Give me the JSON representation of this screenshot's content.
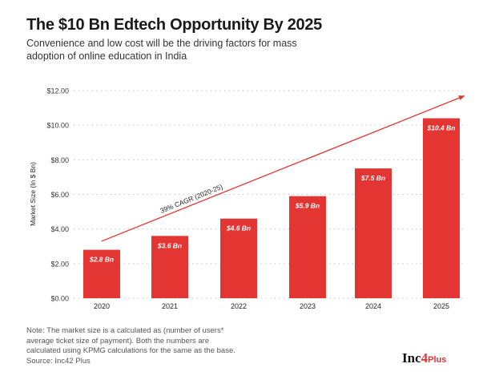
{
  "header": {
    "title": "The $10 Bn Edtech Opportunity By 2025",
    "subtitle": "Convenience and low cost will be the driving factors for mass adoption of online education in India"
  },
  "chart_data": {
    "type": "bar",
    "title": "The $10 Bn Edtech Opportunity By 2025",
    "xlabel": "",
    "ylabel": "Market Size (In $ Bn)",
    "categories": [
      "2020",
      "2021",
      "2022",
      "2023",
      "2024",
      "2025"
    ],
    "values": [
      2.8,
      3.6,
      4.6,
      5.9,
      7.5,
      10.4
    ],
    "data_labels": [
      "$2.8 Bn",
      "$3.6 Bn",
      "$4.6 Bn",
      "$5.9 Bn",
      "$7.5 Bn",
      "$10.4 Bn"
    ],
    "ylim": [
      0,
      12
    ],
    "yticks": [
      0,
      2,
      4,
      6,
      8,
      10,
      12
    ],
    "ytick_labels": [
      "$0.00",
      "$2.00",
      "$4.00",
      "$6.00",
      "$8.00",
      "$10.00",
      "$12.00"
    ],
    "grid": "horizontal-dotted",
    "annotation": {
      "text": "39% CAGR (2020-25)",
      "arrow_from": {
        "category": "2020",
        "value": 3.3
      },
      "arrow_to": {
        "category": "2025",
        "value": 11.7
      }
    },
    "colors": {
      "bar": "#e33532",
      "arrow": "#e33532",
      "bar_label": "#ffffff",
      "grid": "#b5b5b5"
    }
  },
  "footer": {
    "note": "Note: The market size is a calculated as (number of users* average ticket size of payment). Both the numbers are calculated using KPMG calculations for the same as the base.",
    "source": "Source: Inc42 Plus",
    "logo": {
      "part1": "Inc",
      "part2": "4",
      "part3": "Plus"
    }
  }
}
